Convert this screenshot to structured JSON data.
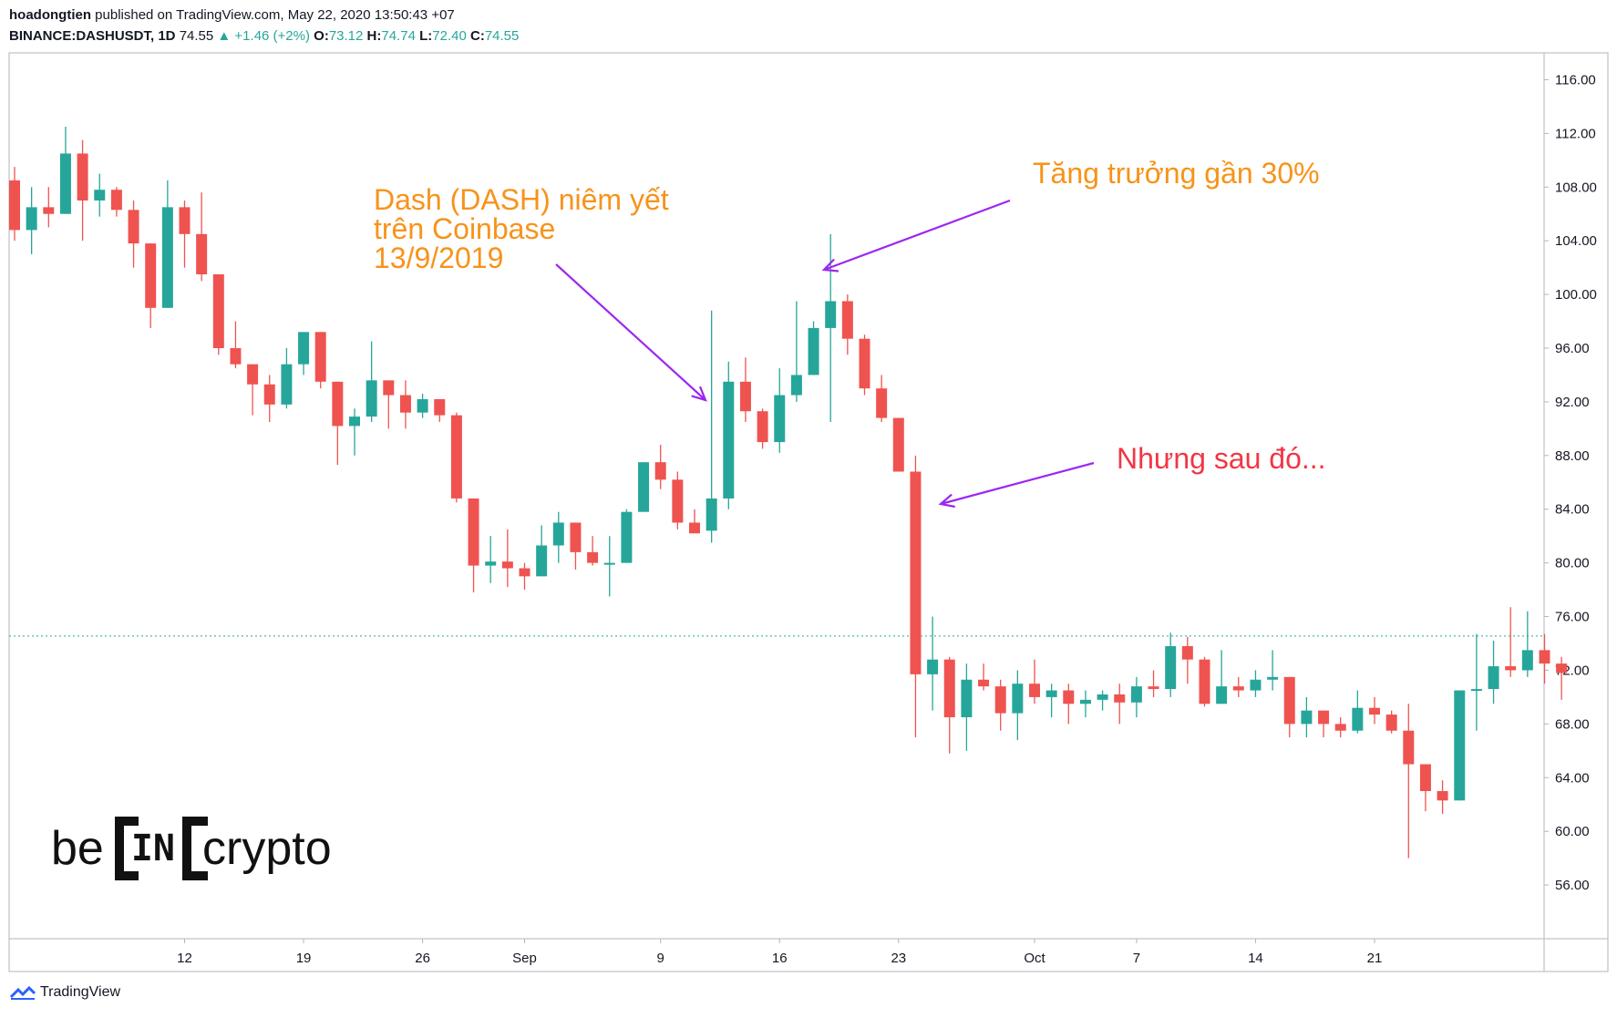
{
  "header": {
    "author": "hoadongtien",
    "published_text": "published on TradingView.com, May 22, 2020 13:50:43 +07",
    "symbol": "BINANCE:DASHUSDT, 1D",
    "last": "74.55",
    "change": "▲ +1.46 (+2%)",
    "o_label": "O:",
    "o_val": "73.12",
    "h_label": "H:",
    "h_val": "74.74",
    "l_label": "L:",
    "l_val": "72.40",
    "c_label": "C:",
    "c_val": "74.55"
  },
  "annotations": {
    "listing_line1": "Dash (DASH) niêm yết",
    "listing_line2": "trên Coinbase",
    "listing_line3": "13/9/2019",
    "growth": "Tăng trưởng gần 30%",
    "but_after": "Nhưng sau đó..."
  },
  "watermark": {
    "pre": "be",
    "box": "IN",
    "post": "crypto"
  },
  "footer": {
    "brand": "TradingView"
  },
  "colors": {
    "up": "#26a69a",
    "down": "#ef5350",
    "arrow": "#9c27f0",
    "orange_text": "#f7931a",
    "red_text": "#f23645"
  },
  "icons": {
    "footer_logo": "tradingview-logo-icon"
  },
  "chart_data": {
    "type": "candlestick",
    "ylim": [
      52,
      118
    ],
    "y_ticks": [
      "116.00",
      "112.00",
      "108.00",
      "104.00",
      "100.00",
      "96.00",
      "92.00",
      "88.00",
      "84.00",
      "80.00",
      "76.00",
      "72.00",
      "68.00",
      "64.00",
      "60.00",
      "56.00"
    ],
    "x_tick_labels": [
      {
        "label": "12",
        "index": 10
      },
      {
        "label": "19",
        "index": 17
      },
      {
        "label": "26",
        "index": 24
      },
      {
        "label": "Sep",
        "index": 30
      },
      {
        "label": "9",
        "index": 38
      },
      {
        "label": "16",
        "index": 45
      },
      {
        "label": "23",
        "index": 52
      },
      {
        "label": "Oct",
        "index": 60
      },
      {
        "label": "7",
        "index": 66
      },
      {
        "label": "14",
        "index": 73
      },
      {
        "label": "21",
        "index": 80
      }
    ],
    "last_price_line": 74.55,
    "candles": [
      {
        "o": 108.5,
        "h": 109.5,
        "l": 104.0,
        "c": 104.8
      },
      {
        "o": 104.8,
        "h": 108.0,
        "l": 103.0,
        "c": 106.5
      },
      {
        "o": 106.5,
        "h": 108.0,
        "l": 105.0,
        "c": 106.0
      },
      {
        "o": 106.0,
        "h": 112.5,
        "l": 106.0,
        "c": 110.5
      },
      {
        "o": 110.5,
        "h": 111.5,
        "l": 104.0,
        "c": 107.0
      },
      {
        "o": 107.0,
        "h": 109.0,
        "l": 105.8,
        "c": 107.8
      },
      {
        "o": 107.8,
        "h": 108.0,
        "l": 105.8,
        "c": 106.3
      },
      {
        "o": 106.3,
        "h": 107.0,
        "l": 102.0,
        "c": 103.8
      },
      {
        "o": 103.8,
        "h": 103.8,
        "l": 97.5,
        "c": 99.0
      },
      {
        "o": 99.0,
        "h": 108.5,
        "l": 99.0,
        "c": 106.5
      },
      {
        "o": 106.5,
        "h": 107.0,
        "l": 102.0,
        "c": 104.5
      },
      {
        "o": 104.5,
        "h": 107.6,
        "l": 101.0,
        "c": 101.5
      },
      {
        "o": 101.5,
        "h": 101.5,
        "l": 95.5,
        "c": 96.0
      },
      {
        "o": 96.0,
        "h": 98.0,
        "l": 94.5,
        "c": 94.8
      },
      {
        "o": 94.8,
        "h": 94.8,
        "l": 91.0,
        "c": 93.3
      },
      {
        "o": 93.3,
        "h": 94.0,
        "l": 90.5,
        "c": 91.8
      },
      {
        "o": 91.8,
        "h": 96.0,
        "l": 91.5,
        "c": 94.8
      },
      {
        "o": 94.8,
        "h": 97.2,
        "l": 94.0,
        "c": 97.2
      },
      {
        "o": 97.2,
        "h": 97.2,
        "l": 93.0,
        "c": 93.5
      },
      {
        "o": 93.5,
        "h": 93.5,
        "l": 87.3,
        "c": 90.2
      },
      {
        "o": 90.2,
        "h": 91.5,
        "l": 88.0,
        "c": 90.9
      },
      {
        "o": 90.9,
        "h": 96.5,
        "l": 90.5,
        "c": 93.6
      },
      {
        "o": 93.6,
        "h": 93.6,
        "l": 90.0,
        "c": 92.5
      },
      {
        "o": 92.5,
        "h": 93.6,
        "l": 90.0,
        "c": 91.2
      },
      {
        "o": 91.2,
        "h": 92.6,
        "l": 90.8,
        "c": 92.2
      },
      {
        "o": 92.2,
        "h": 92.2,
        "l": 90.5,
        "c": 91.0
      },
      {
        "o": 91.0,
        "h": 91.2,
        "l": 84.5,
        "c": 84.8
      },
      {
        "o": 84.8,
        "h": 84.8,
        "l": 77.8,
        "c": 79.8
      },
      {
        "o": 79.8,
        "h": 82.0,
        "l": 78.5,
        "c": 80.1
      },
      {
        "o": 80.1,
        "h": 82.5,
        "l": 78.2,
        "c": 79.6
      },
      {
        "o": 79.6,
        "h": 80.0,
        "l": 78.0,
        "c": 79.0
      },
      {
        "o": 79.0,
        "h": 82.8,
        "l": 79.0,
        "c": 81.3
      },
      {
        "o": 81.3,
        "h": 83.8,
        "l": 80.0,
        "c": 83.0
      },
      {
        "o": 83.0,
        "h": 83.0,
        "l": 79.5,
        "c": 80.8
      },
      {
        "o": 80.8,
        "h": 82.0,
        "l": 79.8,
        "c": 80.0
      },
      {
        "o": 80.0,
        "h": 82.0,
        "l": 77.5,
        "c": 80.0
      },
      {
        "o": 80.0,
        "h": 84.0,
        "l": 80.0,
        "c": 83.8
      },
      {
        "o": 83.8,
        "h": 87.5,
        "l": 83.8,
        "c": 87.5
      },
      {
        "o": 87.5,
        "h": 88.8,
        "l": 85.5,
        "c": 86.2
      },
      {
        "o": 86.2,
        "h": 86.8,
        "l": 82.5,
        "c": 83.0
      },
      {
        "o": 83.0,
        "h": 84.0,
        "l": 82.5,
        "c": 82.2
      },
      {
        "o": 82.4,
        "h": 98.8,
        "l": 81.5,
        "c": 84.8
      },
      {
        "o": 84.8,
        "h": 95.0,
        "l": 84.0,
        "c": 93.5
      },
      {
        "o": 93.5,
        "h": 95.3,
        "l": 90.5,
        "c": 91.3
      },
      {
        "o": 91.3,
        "h": 91.5,
        "l": 88.5,
        "c": 89.0
      },
      {
        "o": 89.0,
        "h": 94.5,
        "l": 88.2,
        "c": 92.5
      },
      {
        "o": 92.5,
        "h": 99.5,
        "l": 92.0,
        "c": 94.0
      },
      {
        "o": 94.0,
        "h": 98.0,
        "l": 94.0,
        "c": 97.5
      },
      {
        "o": 97.5,
        "h": 104.5,
        "l": 90.5,
        "c": 99.5
      },
      {
        "o": 99.5,
        "h": 100.0,
        "l": 95.5,
        "c": 96.7
      },
      {
        "o": 96.7,
        "h": 97.0,
        "l": 92.5,
        "c": 93.0
      },
      {
        "o": 93.0,
        "h": 94.0,
        "l": 90.5,
        "c": 90.8
      },
      {
        "o": 90.8,
        "h": 90.8,
        "l": 86.8,
        "c": 86.8
      },
      {
        "o": 86.8,
        "h": 88.0,
        "l": 67.0,
        "c": 71.7
      },
      {
        "o": 71.7,
        "h": 76.0,
        "l": 69.0,
        "c": 72.8
      },
      {
        "o": 72.8,
        "h": 73.0,
        "l": 65.8,
        "c": 68.5
      },
      {
        "o": 68.5,
        "h": 72.5,
        "l": 66.0,
        "c": 71.3
      },
      {
        "o": 71.3,
        "h": 72.5,
        "l": 70.5,
        "c": 70.8
      },
      {
        "o": 70.8,
        "h": 71.3,
        "l": 67.5,
        "c": 68.8
      },
      {
        "o": 68.8,
        "h": 72.0,
        "l": 66.8,
        "c": 71.0
      },
      {
        "o": 71.0,
        "h": 72.8,
        "l": 69.5,
        "c": 70.0
      },
      {
        "o": 70.0,
        "h": 71.0,
        "l": 68.5,
        "c": 70.5
      },
      {
        "o": 70.5,
        "h": 71.0,
        "l": 68.0,
        "c": 69.5
      },
      {
        "o": 69.5,
        "h": 70.5,
        "l": 68.5,
        "c": 69.8
      },
      {
        "o": 69.8,
        "h": 70.5,
        "l": 69.0,
        "c": 70.2
      },
      {
        "o": 70.2,
        "h": 71.0,
        "l": 68.0,
        "c": 69.6
      },
      {
        "o": 69.6,
        "h": 71.5,
        "l": 68.5,
        "c": 70.8
      },
      {
        "o": 70.8,
        "h": 72.0,
        "l": 70.0,
        "c": 70.6
      },
      {
        "o": 70.6,
        "h": 74.8,
        "l": 70.0,
        "c": 73.8
      },
      {
        "o": 73.8,
        "h": 74.5,
        "l": 71.0,
        "c": 72.8
      },
      {
        "o": 72.8,
        "h": 73.0,
        "l": 69.3,
        "c": 69.5
      },
      {
        "o": 69.5,
        "h": 73.5,
        "l": 69.5,
        "c": 70.8
      },
      {
        "o": 70.8,
        "h": 71.5,
        "l": 70.0,
        "c": 70.5
      },
      {
        "o": 70.5,
        "h": 72.0,
        "l": 70.0,
        "c": 71.3
      },
      {
        "o": 71.3,
        "h": 73.5,
        "l": 70.5,
        "c": 71.5
      },
      {
        "o": 71.5,
        "h": 71.5,
        "l": 67.0,
        "c": 68.0
      },
      {
        "o": 68.0,
        "h": 70.0,
        "l": 67.0,
        "c": 69.0
      },
      {
        "o": 69.0,
        "h": 69.0,
        "l": 67.0,
        "c": 68.0
      },
      {
        "o": 68.0,
        "h": 68.5,
        "l": 67.0,
        "c": 67.5
      },
      {
        "o": 67.5,
        "h": 70.5,
        "l": 67.3,
        "c": 69.2
      },
      {
        "o": 69.2,
        "h": 70.0,
        "l": 68.0,
        "c": 68.7
      },
      {
        "o": 68.7,
        "h": 69.0,
        "l": 67.3,
        "c": 67.5
      },
      {
        "o": 67.5,
        "h": 69.5,
        "l": 58.0,
        "c": 65.0
      },
      {
        "o": 65.0,
        "h": 65.0,
        "l": 61.5,
        "c": 63.0
      },
      {
        "o": 63.0,
        "h": 63.8,
        "l": 61.3,
        "c": 62.3
      },
      {
        "o": 62.3,
        "h": 70.5,
        "l": 62.3,
        "c": 70.5
      },
      {
        "o": 70.5,
        "h": 74.7,
        "l": 67.5,
        "c": 70.6
      },
      {
        "o": 70.6,
        "h": 74.2,
        "l": 69.5,
        "c": 72.3
      },
      {
        "o": 72.3,
        "h": 76.7,
        "l": 71.5,
        "c": 72.0
      },
      {
        "o": 72.0,
        "h": 76.4,
        "l": 71.5,
        "c": 73.5
      },
      {
        "o": 73.5,
        "h": 74.7,
        "l": 71.0,
        "c": 72.5
      },
      {
        "o": 72.5,
        "h": 73.0,
        "l": 69.8,
        "c": 71.8
      }
    ]
  }
}
